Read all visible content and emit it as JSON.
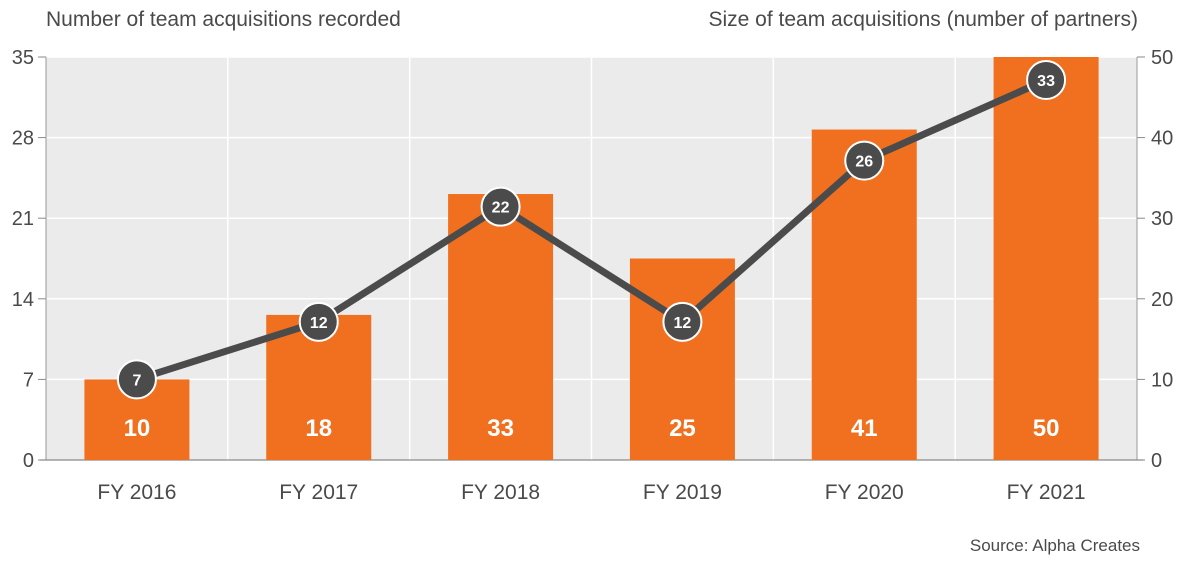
{
  "chart_data": {
    "type": "bar",
    "categories": [
      "FY 2016",
      "FY 2017",
      "FY 2018",
      "FY 2019",
      "FY 2020",
      "FY 2021"
    ],
    "series": [
      {
        "type": "bar",
        "axis": "right",
        "values": [
          10,
          18,
          33,
          25,
          41,
          50
        ]
      },
      {
        "type": "line",
        "axis": "left",
        "values": [
          7,
          12,
          22,
          12,
          26,
          33
        ]
      }
    ],
    "left_axis": {
      "label": "Number of team acquisitions recorded",
      "range": [
        0,
        35
      ],
      "ticks": [
        0,
        7,
        14,
        21,
        28,
        35
      ]
    },
    "right_axis": {
      "label": "Size of team acquisitions (number of partners)",
      "range": [
        0,
        50
      ],
      "ticks": [
        0,
        10,
        20,
        30,
        40,
        50
      ]
    },
    "source": "Source: Alpha Creates",
    "grid": true,
    "colors": {
      "bar": "#f07020",
      "line": "#4b4b4b",
      "plot_bg": "#ebebeb",
      "grid": "#ffffff",
      "text": "#4a4a4a"
    }
  }
}
